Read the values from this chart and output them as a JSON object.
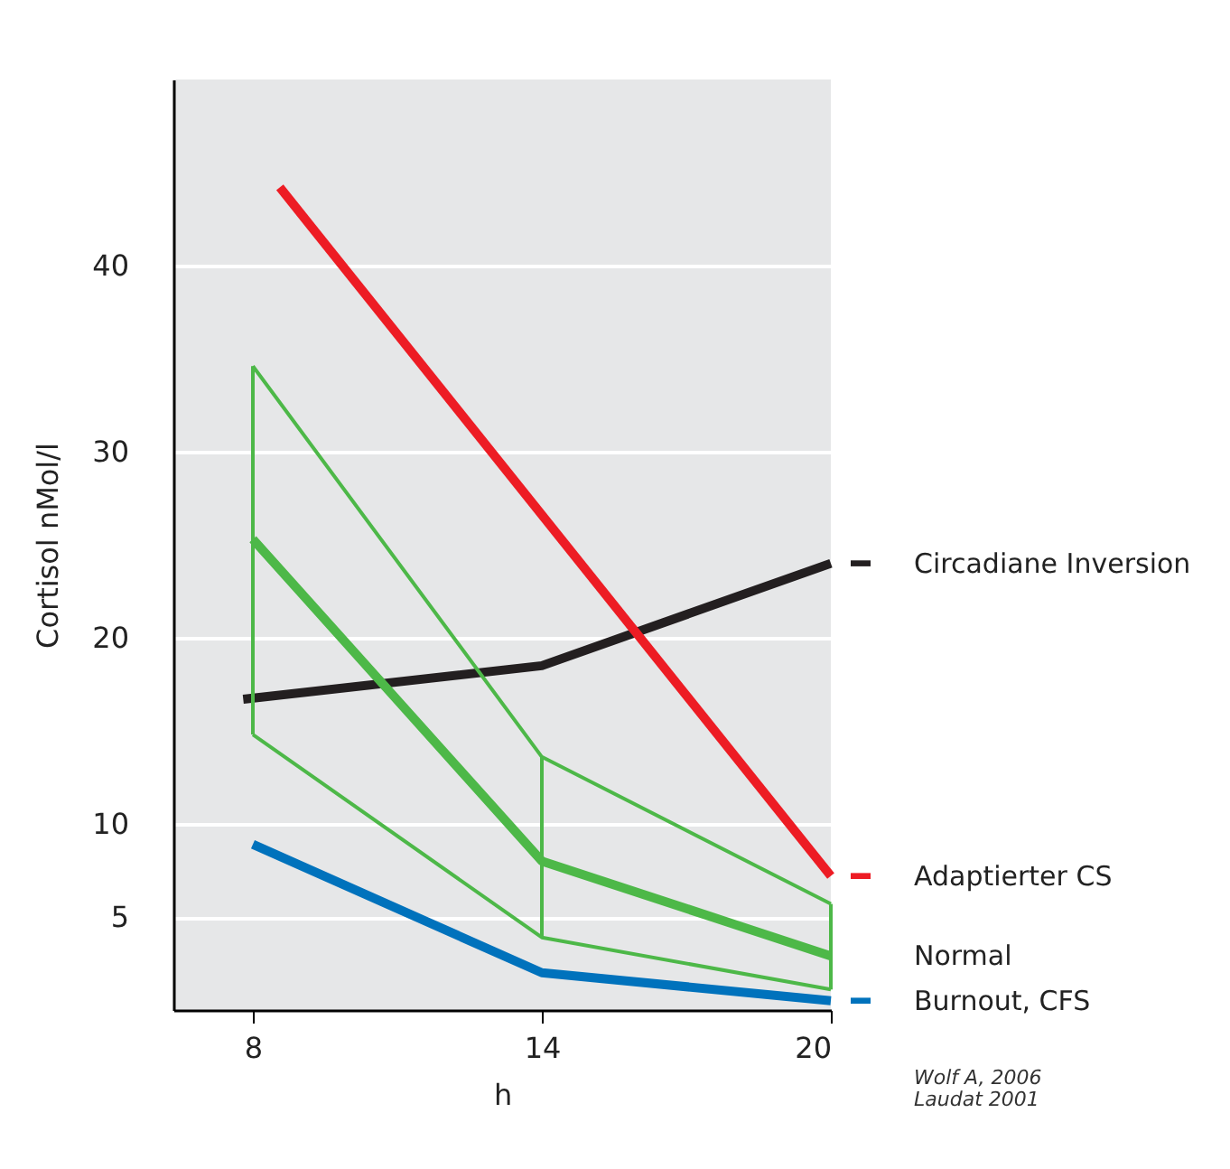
{
  "chart_data": {
    "type": "line",
    "xlabel": "h",
    "ylabel": "Cortisol nMol/l",
    "x": [
      8,
      14,
      20
    ],
    "xlim": [
      6.35,
      20
    ],
    "xticks": [
      8,
      14,
      20
    ],
    "ylim": [
      0,
      50
    ],
    "yticks": [
      5,
      10,
      20,
      30,
      40
    ],
    "grid": "y",
    "legend": "right",
    "series": [
      {
        "name": "Circadiane Inversion",
        "color": "#231f20",
        "x": [
          7.8,
          14,
          20
        ],
        "values": [
          16.7,
          18.5,
          24.0
        ]
      },
      {
        "name": "Adaptierter CS",
        "color": "#ed1c24",
        "x": [
          8.56,
          20
        ],
        "values": [
          44.2,
          7.2
        ]
      },
      {
        "name": "Normal",
        "color": "#4db848",
        "values": [
          25.3,
          8.0,
          2.9
        ],
        "errors": [
          [
            14.8,
            34.6
          ],
          [
            3.9,
            13.6
          ],
          [
            1.1,
            5.7
          ]
        ]
      },
      {
        "color": "#4db848",
        "values": [
          34.6,
          13.6,
          5.7
        ]
      },
      {
        "color": "#4db848",
        "values": [
          14.8,
          3.9,
          1.1
        ]
      },
      {
        "name": "Burnout, CFS",
        "color": "#0072bc",
        "values": [
          8.9,
          2.0,
          0.5
        ]
      }
    ],
    "annotations": [
      "Wolf A, 2006",
      "Laudat 2001"
    ]
  }
}
